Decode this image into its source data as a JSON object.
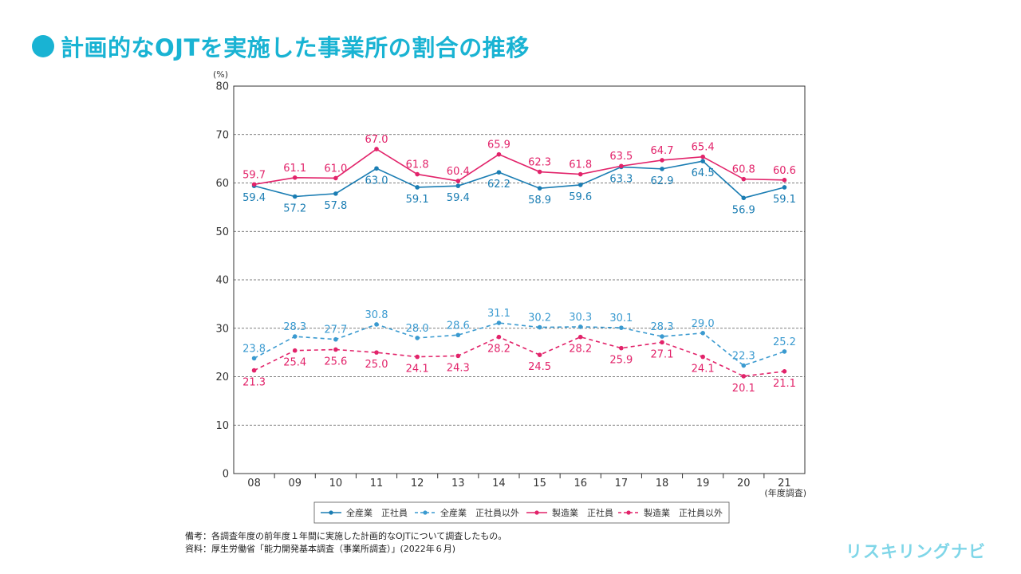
{
  "title": "計画的なOJTを実施した事業所の割合の推移",
  "notes": [
    "備考：各調査年度の前年度１年間に実施した計画的なOJTについて調査したもの。",
    "資料：厚生労働省「能力開発基本調査（事業所調査）」(2022年６月)"
  ],
  "brand": "リスキリングナビ",
  "colors": {
    "accent": "#19b3d3",
    "blue": "#1a7db3",
    "lightblue": "#3a9ad0",
    "pink": "#e2236a"
  },
  "chart_data": {
    "type": "line",
    "y_unit_label": "(%)",
    "x_unit_label": "(年度調査)",
    "ylim": [
      0,
      80
    ],
    "yticks": [
      0,
      10,
      20,
      30,
      40,
      50,
      60,
      70,
      80
    ],
    "categories": [
      "08",
      "09",
      "10",
      "11",
      "12",
      "13",
      "14",
      "15",
      "16",
      "17",
      "18",
      "19",
      "20",
      "21"
    ],
    "series": [
      {
        "name": "全産業 正社員",
        "legend": "全産業　正社員",
        "color": "#1a7db3",
        "dashed": false,
        "label_pos": "below",
        "values": [
          59.4,
          57.2,
          57.8,
          63.0,
          59.1,
          59.4,
          62.2,
          58.9,
          59.6,
          63.3,
          62.9,
          64.5,
          56.9,
          59.1
        ],
        "labels": [
          "59.4",
          "57.2",
          "57.8",
          "63.0",
          "59.1",
          "59.4",
          "62.2",
          "58.9",
          "59.6",
          "63.3",
          "62.9",
          "64.5",
          "56.9",
          "59.1"
        ]
      },
      {
        "name": "全産業 正社員以外",
        "legend": "全産業　正社員以外",
        "color": "#3a9ad0",
        "dashed": true,
        "label_pos": "above",
        "values": [
          23.8,
          28.3,
          27.7,
          30.8,
          28.0,
          28.6,
          31.1,
          30.2,
          30.3,
          30.1,
          28.3,
          29.0,
          22.3,
          25.2
        ],
        "labels": [
          "23.8",
          "28.3",
          "27.7",
          "30.8",
          "28.0",
          "28.6",
          "31.1",
          "30.2",
          "30.3",
          "30.1",
          "28.3",
          "29.0",
          "22.3",
          "25.2"
        ]
      },
      {
        "name": "製造業 正社員",
        "legend": "製造業　正社員",
        "color": "#e2236a",
        "dashed": false,
        "label_pos": "above",
        "values": [
          59.7,
          61.1,
          61.0,
          67.0,
          61.8,
          60.4,
          65.9,
          62.3,
          61.8,
          63.5,
          64.7,
          65.4,
          60.8,
          60.6
        ],
        "labels": [
          "59.7",
          "61.1",
          "61.0",
          "67.0",
          "61.8",
          "60.4",
          "65.9",
          "62.3",
          "61.8",
          "63.5",
          "64.7",
          "65.4",
          "60.8",
          "60.6"
        ]
      },
      {
        "name": "製造業 正社員以外",
        "legend": "製造業　正社員以外",
        "color": "#e2236a",
        "dashed": true,
        "label_pos": "below",
        "values": [
          21.3,
          25.4,
          25.6,
          25.0,
          24.1,
          24.3,
          28.2,
          24.5,
          28.2,
          25.9,
          27.1,
          24.1,
          20.1,
          21.1
        ],
        "labels": [
          "21.3",
          "25.4",
          "25.6",
          "25.0",
          "24.1",
          "24.3",
          "28.2",
          "24.5",
          "28.2",
          "25.9",
          "27.1",
          "24.1",
          "20.1",
          "21.1"
        ]
      }
    ]
  }
}
